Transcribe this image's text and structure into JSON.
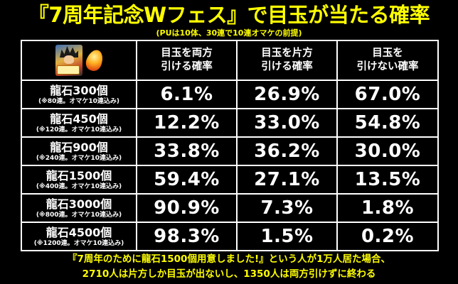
{
  "title": "『7周年記念Wフェス』で目玉が当たる確率",
  "subtitle": "(PUは10体、30連で10連オマケの前提)",
  "table": {
    "corner_icons": [
      "character-portrait-icon",
      "dragon-stone-icon"
    ],
    "headers": [
      {
        "line1": "目玉を両方",
        "line2": "引ける確率"
      },
      {
        "line1": "目玉を片方",
        "line2": "引ける確率"
      },
      {
        "line1": "目玉を",
        "line2": "引けない確率"
      }
    ],
    "rows": [
      {
        "label": "龍石300個",
        "sub": "(※80連。オマケ10連込み)",
        "values": [
          "6.1%",
          "26.9%",
          "67.0%"
        ]
      },
      {
        "label": "龍石450個",
        "sub": "(※120連。オマケ10連込み)",
        "values": [
          "12.2%",
          "33.0%",
          "54.8%"
        ]
      },
      {
        "label": "龍石900個",
        "sub": "(※240連。オマケ10連込み)",
        "values": [
          "33.8%",
          "36.2%",
          "30.0%"
        ]
      },
      {
        "label": "龍石1500個",
        "sub": "(※400連。オマケ10連込み)",
        "values": [
          "59.4%",
          "27.1%",
          "13.5%"
        ]
      },
      {
        "label": "龍石3000個",
        "sub": "(※800連。オマケ10連込み)",
        "values": [
          "90.9%",
          "7.3%",
          "1.8%"
        ]
      },
      {
        "label": "龍石4500個",
        "sub": "(※1200連。オマケ10連込み)",
        "values": [
          "98.3%",
          "1.5%",
          "0.2%"
        ]
      }
    ]
  },
  "footer": {
    "line1": "『7周年のために龍石1500個用意しました!』という人が1万人居た場合、",
    "line2": "2710人は片方しか目玉が出ないし、1350人は両方引けずに終わる"
  },
  "colors": {
    "background": "#000000",
    "accent_text": "#ffff00",
    "table_text": "#ffffff",
    "grid_lines": "#ffffff"
  }
}
